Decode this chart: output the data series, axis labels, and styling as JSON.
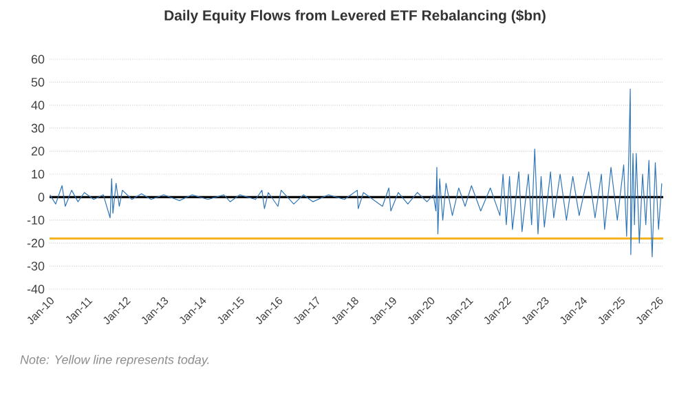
{
  "chart_data": {
    "type": "line",
    "title": "Daily Equity Flows from Levered ETF Rebalancing ($bn)",
    "x": [
      "2010-01-05",
      "2010-03-01",
      "2010-05-01",
      "2010-06-01",
      "2010-08-01",
      "2010-10-01",
      "2010-12-01",
      "2011-03-01",
      "2011-06-01",
      "2011-08-05",
      "2011-08-20",
      "2011-09-01",
      "2011-10-01",
      "2011-11-01",
      "2011-12-01",
      "2012-03-01",
      "2012-06-01",
      "2012-09-01",
      "2013-01-01",
      "2013-06-01",
      "2013-10-01",
      "2014-03-01",
      "2014-08-01",
      "2014-10-01",
      "2015-01-01",
      "2015-06-01",
      "2015-08-01",
      "2015-08-25",
      "2015-10-01",
      "2016-01-01",
      "2016-02-01",
      "2016-06-01",
      "2016-09-01",
      "2016-12-01",
      "2017-05-01",
      "2017-10-01",
      "2018-02-01",
      "2018-02-10",
      "2018-04-01",
      "2018-10-01",
      "2018-12-01",
      "2018-12-20",
      "2019-03-01",
      "2019-06-01",
      "2019-09-01",
      "2019-12-01",
      "2020-02-01",
      "2020-02-25",
      "2020-03-05",
      "2020-03-15",
      "2020-04-01",
      "2020-05-01",
      "2020-06-01",
      "2020-08-01",
      "2020-10-01",
      "2020-12-01",
      "2021-02-01",
      "2021-05-01",
      "2021-08-01",
      "2021-11-01",
      "2021-12-01",
      "2022-01-01",
      "2022-02-01",
      "2022-03-01",
      "2022-05-01",
      "2022-06-01",
      "2022-08-01",
      "2022-09-01",
      "2022-10-01",
      "2022-11-01",
      "2022-12-01",
      "2023-01-01",
      "2023-03-01",
      "2023-04-01",
      "2023-06-01",
      "2023-08-01",
      "2023-10-01",
      "2023-12-01",
      "2024-03-01",
      "2024-05-01",
      "2024-07-01",
      "2024-08-01",
      "2024-10-01",
      "2024-12-01",
      "2025-02-01",
      "2025-03-01",
      "2025-03-20",
      "2025-04-05",
      "2025-04-10",
      "2025-05-01",
      "2025-05-15",
      "2025-06-01",
      "2025-07-01",
      "2025-08-01",
      "2025-09-01",
      "2025-10-01",
      "2025-11-01",
      "2025-12-01",
      "2026-01-01",
      "2026-02-01"
    ],
    "series": [
      {
        "color": "#2e75b6",
        "values": [
          1,
          -3,
          5,
          -4,
          3,
          -2,
          2,
          -1,
          1,
          -9,
          8,
          -7,
          6,
          -4,
          3,
          -1,
          1.5,
          -1,
          1,
          -1.5,
          1,
          -1,
          1,
          -2,
          1,
          -1,
          3,
          -5,
          2,
          -4,
          3,
          -3,
          1,
          -2,
          1,
          -1,
          3,
          -5,
          2,
          -4,
          4,
          -6,
          2,
          -3,
          2,
          -2,
          1,
          -6,
          13,
          -16,
          8,
          -10,
          6,
          -8,
          4,
          -4,
          5,
          -6,
          4,
          -8,
          10,
          -12,
          9,
          -14,
          11,
          -15,
          10,
          -12,
          21,
          -16,
          9,
          -13,
          11,
          -9,
          10,
          -10,
          9,
          -8,
          11,
          -9,
          10,
          -14,
          13,
          -10,
          14,
          -17,
          15,
          47,
          -25,
          19,
          -12,
          19,
          -20,
          10,
          -12,
          16,
          -26,
          15,
          -14,
          6
        ]
      }
    ],
    "xlim": [
      "2010-01-01",
      "2026-02-15"
    ],
    "xticks": [
      {
        "value": "2010-01-01",
        "label": "Jan-10"
      },
      {
        "value": "2011-01-01",
        "label": "Jan-11"
      },
      {
        "value": "2012-01-01",
        "label": "Jan-12"
      },
      {
        "value": "2013-01-01",
        "label": "Jan-13"
      },
      {
        "value": "2014-01-01",
        "label": "Jan-14"
      },
      {
        "value": "2015-01-01",
        "label": "Jan-15"
      },
      {
        "value": "2016-01-01",
        "label": "Jan-16"
      },
      {
        "value": "2017-01-01",
        "label": "Jan-17"
      },
      {
        "value": "2018-01-01",
        "label": "Jan-18"
      },
      {
        "value": "2019-01-01",
        "label": "Jan-19"
      },
      {
        "value": "2020-01-01",
        "label": "Jan-20"
      },
      {
        "value": "2021-01-01",
        "label": "Jan-21"
      },
      {
        "value": "2022-01-01",
        "label": "Jan-22"
      },
      {
        "value": "2023-01-01",
        "label": "Jan-23"
      },
      {
        "value": "2024-01-01",
        "label": "Jan-24"
      },
      {
        "value": "2025-01-01",
        "label": "Jan-25"
      },
      {
        "value": "2026-01-01",
        "label": "Jan-26"
      }
    ],
    "ylim": [
      -40,
      60
    ],
    "yticks": [
      -40,
      -30,
      -20,
      -10,
      0,
      10,
      20,
      30,
      40,
      50,
      60
    ],
    "grid": "y",
    "ref_lines": [
      {
        "axis": "y",
        "value": 0,
        "color": "#000000"
      },
      {
        "axis": "y",
        "value": -18,
        "color": "#f5b323"
      }
    ],
    "annotations": [
      "Note: Yellow line represents today."
    ]
  }
}
